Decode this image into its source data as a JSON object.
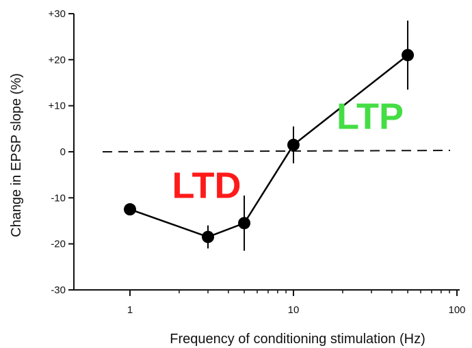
{
  "chart_data": {
    "type": "line",
    "title": "",
    "xlabel": "Frequency of conditioning stimulation (Hz)",
    "ylabel": "Change in EPSP slope (%)",
    "x_scale": "log",
    "xlim": [
      1,
      100
    ],
    "ylim": [
      -30,
      30
    ],
    "x_ticks": [
      1,
      10,
      100
    ],
    "x_tick_labels": [
      "1",
      "10",
      "100"
    ],
    "y_ticks": [
      30,
      20,
      10,
      0,
      -10,
      -20,
      -30
    ],
    "y_tick_labels": [
      "+30",
      "+20",
      "+10",
      "0",
      "-10",
      "-20",
      "-30"
    ],
    "grid": false,
    "reference_line": {
      "y": 0,
      "style": "dashed"
    },
    "series": [
      {
        "x": [
          1,
          3,
          5,
          10,
          50
        ],
        "y": [
          -12.5,
          -18.5,
          -15.5,
          1.5,
          21
        ],
        "error": [
          0,
          2.5,
          6,
          4,
          7.5
        ],
        "color": "#000000"
      }
    ],
    "annotations": [
      {
        "text": "LTD",
        "color": "#ff1a1a",
        "x": 3,
        "y": -10
      },
      {
        "text": "LTP",
        "color": "#44dd44",
        "x": 30,
        "y": 5
      }
    ]
  }
}
